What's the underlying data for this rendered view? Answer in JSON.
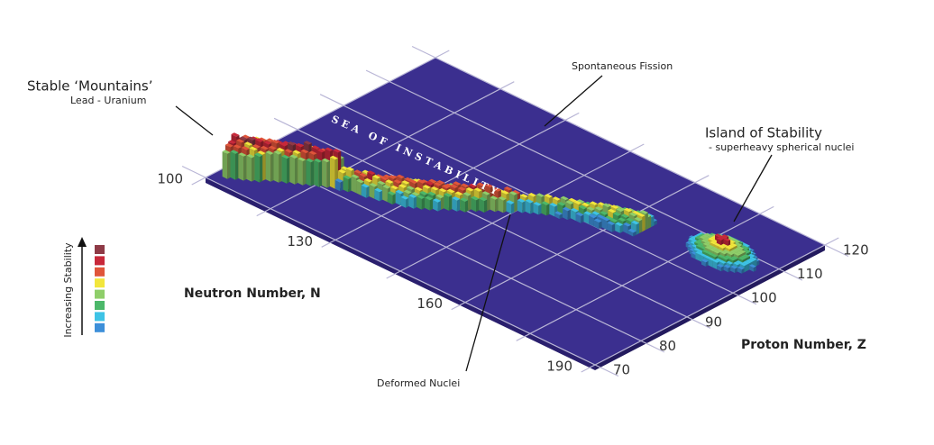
{
  "annotations": {
    "stable_mountains": {
      "title": "Stable ‘Mountains’",
      "subtitle": "Lead - Uranium"
    },
    "spontaneous_fission": "Spontaneous Fission",
    "island": {
      "title": "Island of Stability",
      "subtitle": "- superheavy spherical nuclei"
    },
    "deformed_nuclei": "Deformed Nuclei",
    "sea": "SEA OF INSTABILITY"
  },
  "neutron_axis": {
    "label": "Neutron Number, N",
    "ticks": [
      100,
      130,
      160,
      190
    ]
  },
  "proton_axis": {
    "label": "Proton Number, Z",
    "ticks": [
      70,
      80,
      90,
      100,
      110,
      120
    ]
  },
  "legend": {
    "label": "Increasing Stability",
    "colors": [
      "#8e3a46",
      "#c8283a",
      "#e0553a",
      "#f2e63c",
      "#8fce6a",
      "#4cb86a",
      "#3ec3e6",
      "#3d8fd9"
    ]
  }
}
